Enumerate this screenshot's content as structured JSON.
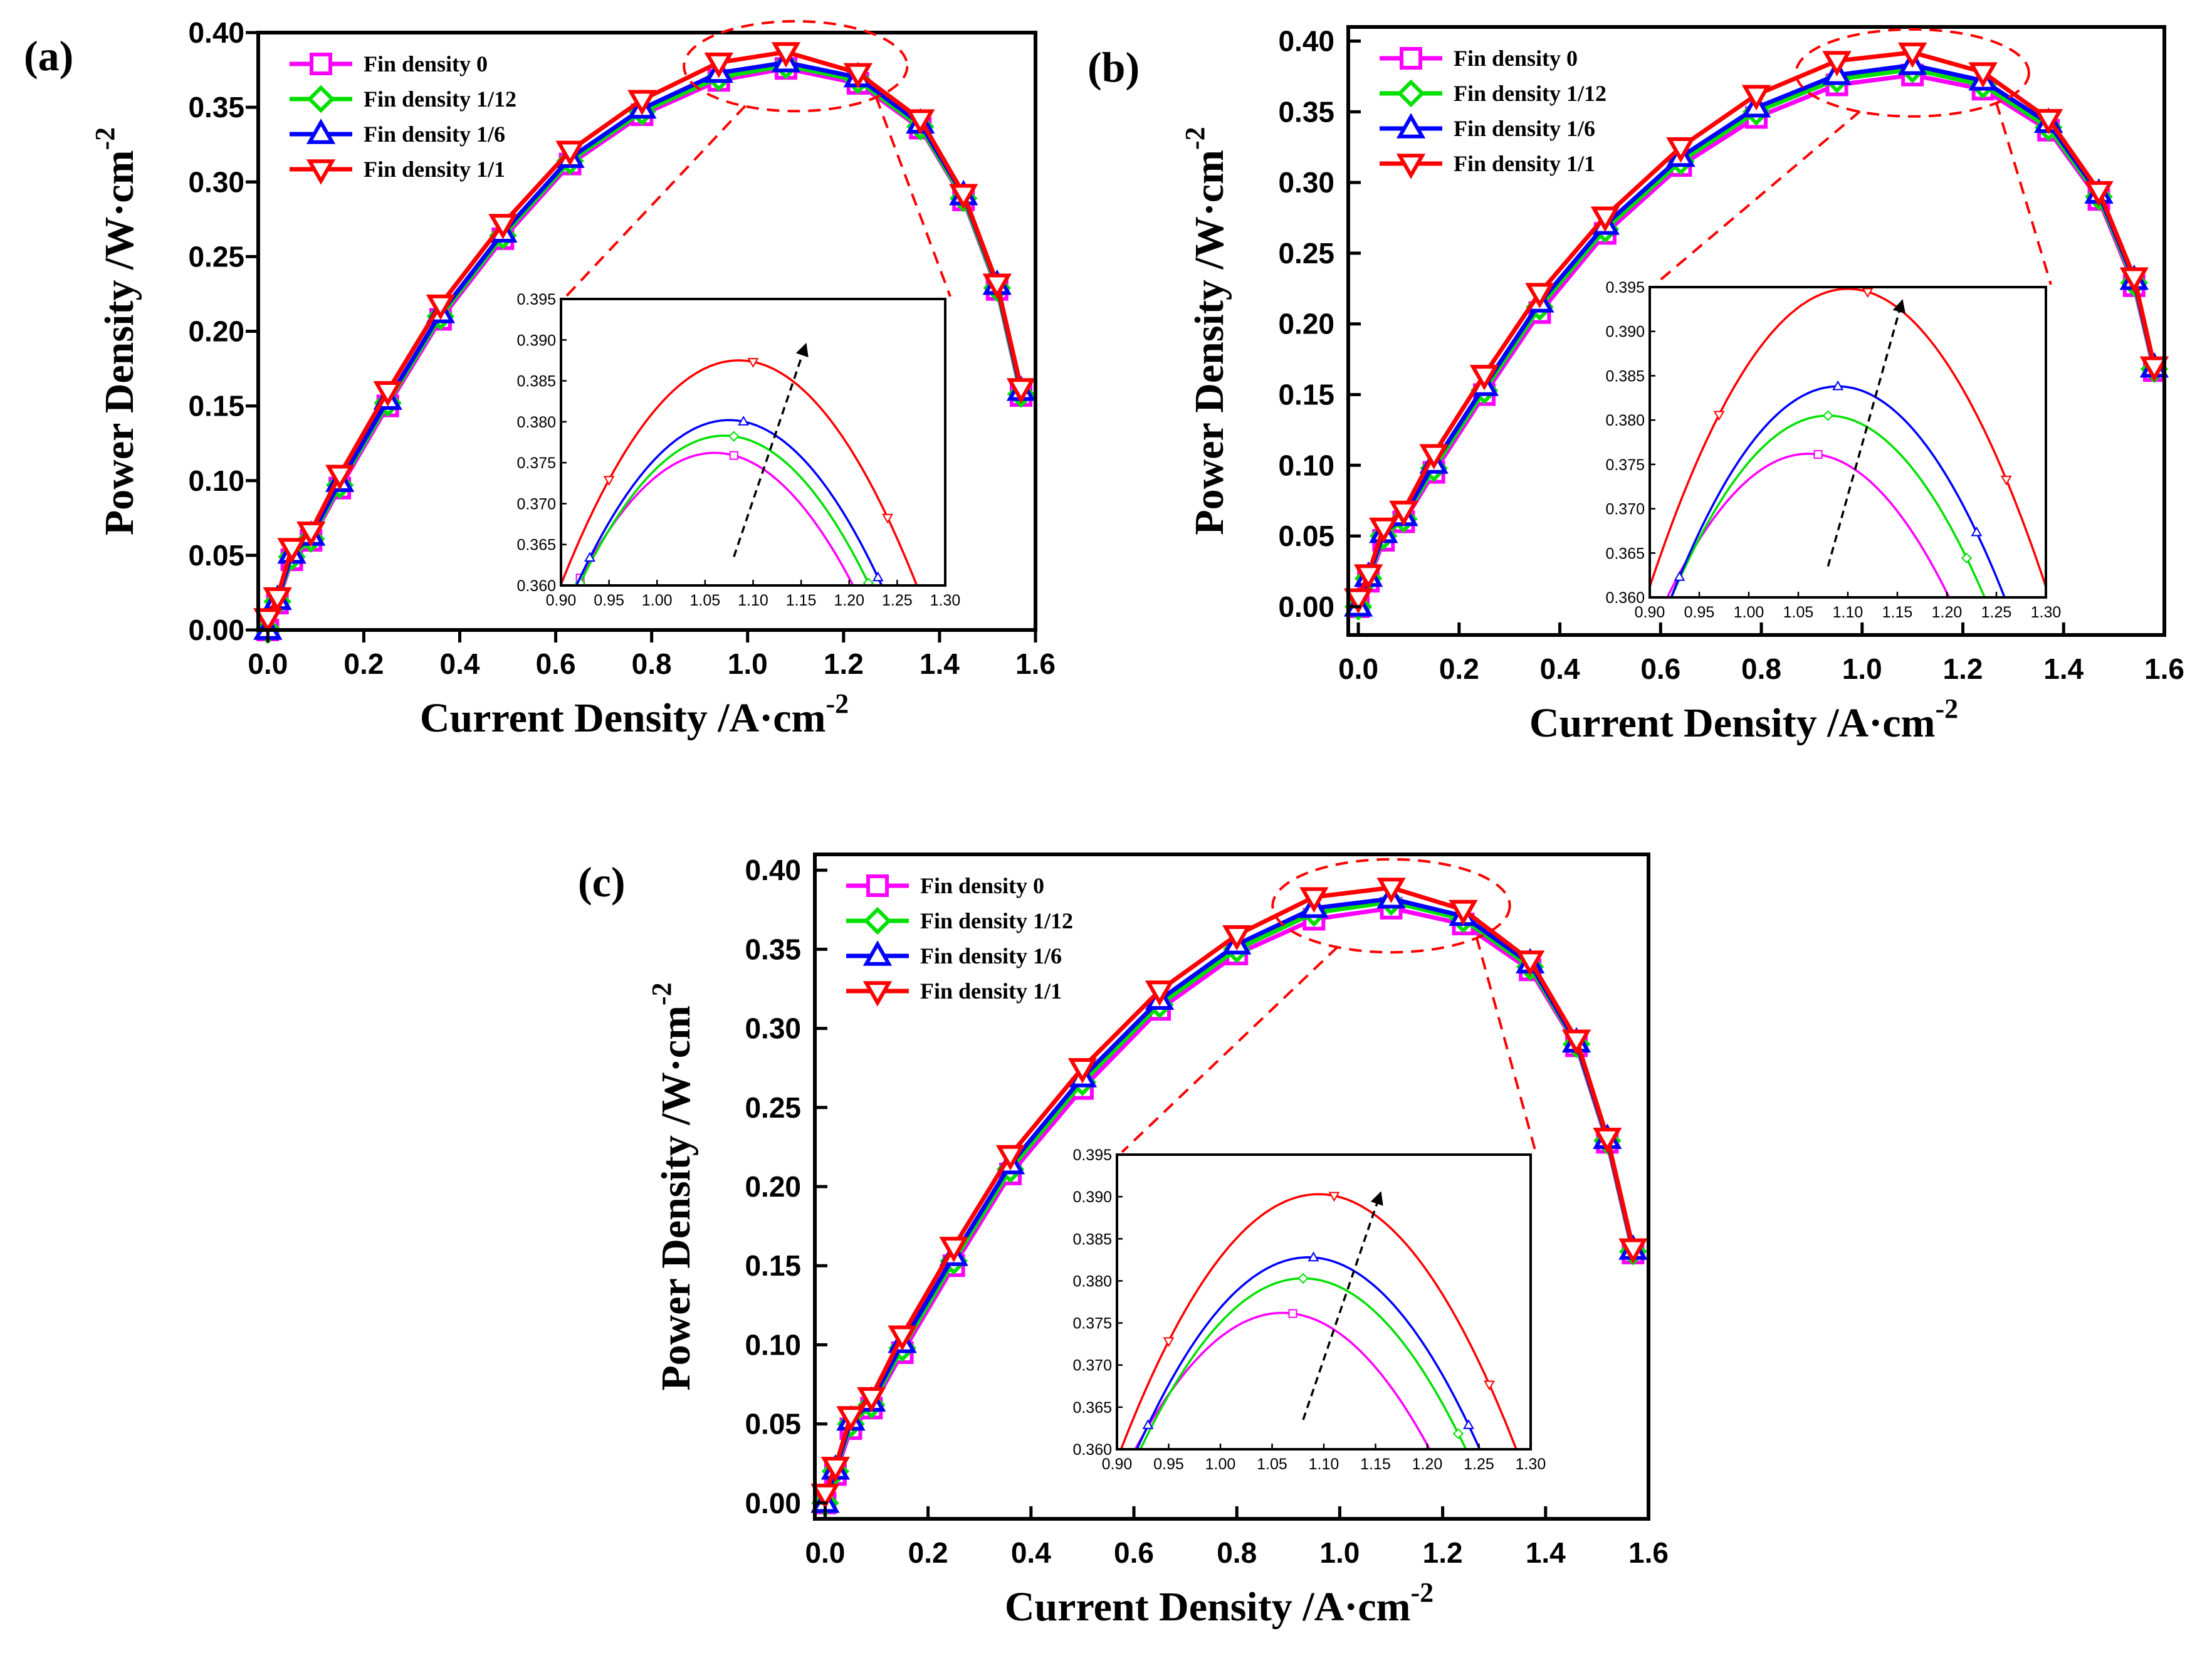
{
  "figure": {
    "series_styles": [
      {
        "name": "Fin density 0",
        "color": "#FF00FF",
        "marker": "square"
      },
      {
        "name": "Fin density 1/12",
        "color": "#00E000",
        "marker": "diamond"
      },
      {
        "name": "Fin density 1/6",
        "color": "#0000FF",
        "marker": "triangle-up"
      },
      {
        "name": "Fin density 1/1",
        "color": "#FF0000",
        "marker": "triangle-down"
      }
    ],
    "zoom_outline_color": "#FF0000",
    "trend_arrow_color": "#000000"
  },
  "chart_data": [
    {
      "panel_label": "(a)",
      "type": "line",
      "xlabel": "Current Density /A·cm",
      "xlabel_exponent": "-2",
      "ylabel": "Power Density /W·cm",
      "ylabel_exponent": "-2",
      "xlim": [
        -0.02,
        1.6
      ],
      "ylim": [
        0.0,
        0.4
      ],
      "xticks": [
        "0.0",
        "0.2",
        "0.4",
        "0.6",
        "0.8",
        "1.0",
        "1.2",
        "1.4",
        "1.6"
      ],
      "yticks": [
        "0.00",
        "0.05",
        "0.10",
        "0.15",
        "0.20",
        "0.25",
        "0.30",
        "0.35",
        "0.40"
      ],
      "legend": "top-left",
      "x": [
        0.0,
        0.02,
        0.05,
        0.09,
        0.15,
        0.25,
        0.36,
        0.49,
        0.63,
        0.78,
        0.94,
        1.08,
        1.23,
        1.36,
        1.45,
        1.52,
        1.57
      ],
      "series": [
        {
          "name": "Fin density 0",
          "values": [
            0.0,
            0.018,
            0.047,
            0.06,
            0.095,
            0.15,
            0.208,
            0.262,
            0.312,
            0.345,
            0.368,
            0.376,
            0.366,
            0.336,
            0.288,
            0.228,
            0.157
          ]
        },
        {
          "name": "Fin density 1/12",
          "values": [
            0.0,
            0.019,
            0.049,
            0.061,
            0.097,
            0.152,
            0.21,
            0.264,
            0.314,
            0.347,
            0.37,
            0.378,
            0.368,
            0.337,
            0.289,
            0.229,
            0.158
          ]
        },
        {
          "name": "Fin density 1/6",
          "values": [
            0.0,
            0.02,
            0.051,
            0.063,
            0.099,
            0.154,
            0.212,
            0.266,
            0.316,
            0.349,
            0.373,
            0.38,
            0.37,
            0.339,
            0.291,
            0.231,
            0.16
          ]
        },
        {
          "name": "Fin density 1/1",
          "values": [
            0.008,
            0.022,
            0.055,
            0.066,
            0.104,
            0.16,
            0.218,
            0.272,
            0.321,
            0.355,
            0.38,
            0.387,
            0.373,
            0.342,
            0.292,
            0.232,
            0.162
          ]
        }
      ],
      "inset": {
        "xlim": [
          0.9,
          1.3
        ],
        "ylim": [
          0.36,
          0.395
        ],
        "xticks": [
          "0.90",
          "0.95",
          "1.00",
          "1.05",
          "1.10",
          "1.15",
          "1.20",
          "1.25",
          "1.30"
        ],
        "yticks": [
          "0.360",
          "0.365",
          "0.370",
          "0.375",
          "0.380",
          "0.385",
          "0.390",
          "0.395"
        ],
        "curves": [
          {
            "name": "Fin density 0",
            "peak_x": 1.06,
            "peak_y": 0.3762,
            "curvature": 0.78,
            "markers_x": [
              0.92,
              1.08,
              1.22
            ]
          },
          {
            "name": "Fin density 1/12",
            "peak_x": 1.07,
            "peak_y": 0.3783,
            "curvature": 0.8,
            "markers_x": [
              0.92,
              1.08,
              1.22
            ]
          },
          {
            "name": "Fin density 1/6",
            "peak_x": 1.075,
            "peak_y": 0.3802,
            "curvature": 0.8,
            "markers_x": [
              0.93,
              1.09,
              1.23
            ]
          },
          {
            "name": "Fin density 1/1",
            "peak_x": 1.085,
            "peak_y": 0.3875,
            "curvature": 0.8,
            "markers_x": [
              0.95,
              1.1,
              1.24
            ]
          }
        ],
        "arrow": {
          "from": [
            1.08,
            0.3635
          ],
          "to": [
            1.155,
            0.3895
          ]
        }
      }
    },
    {
      "panel_label": "(b)",
      "type": "line",
      "xlabel": "Current Density /A·cm",
      "xlabel_exponent": "-2",
      "ylabel": "Power Density /W·cm",
      "ylabel_exponent": "-2",
      "xlim": [
        -0.02,
        1.6
      ],
      "ylim": [
        -0.02,
        0.41
      ],
      "xticks": [
        "0.0",
        "0.2",
        "0.4",
        "0.6",
        "0.8",
        "1.0",
        "1.2",
        "1.4",
        "1.6"
      ],
      "yticks": [
        "0.00",
        "0.05",
        "0.10",
        "0.15",
        "0.20",
        "0.25",
        "0.30",
        "0.35",
        "0.40"
      ],
      "legend": "top-left",
      "x": [
        0.0,
        0.02,
        0.05,
        0.09,
        0.15,
        0.25,
        0.36,
        0.49,
        0.64,
        0.79,
        0.95,
        1.1,
        1.24,
        1.37,
        1.47,
        1.54,
        1.58
      ],
      "series": [
        {
          "name": "Fin density 0",
          "values": [
            0.0,
            0.018,
            0.047,
            0.06,
            0.095,
            0.15,
            0.208,
            0.264,
            0.312,
            0.346,
            0.369,
            0.376,
            0.366,
            0.337,
            0.288,
            0.227,
            0.167
          ]
        },
        {
          "name": "Fin density 1/12",
          "values": [
            0.0,
            0.02,
            0.05,
            0.062,
            0.098,
            0.153,
            0.212,
            0.267,
            0.315,
            0.35,
            0.373,
            0.38,
            0.369,
            0.339,
            0.29,
            0.229,
            0.168
          ]
        },
        {
          "name": "Fin density 1/6",
          "values": [
            0.0,
            0.021,
            0.052,
            0.064,
            0.101,
            0.156,
            0.215,
            0.27,
            0.318,
            0.353,
            0.376,
            0.383,
            0.372,
            0.342,
            0.292,
            0.231,
            0.169
          ]
        },
        {
          "name": "Fin density 1/1",
          "values": [
            0.006,
            0.023,
            0.056,
            0.068,
            0.108,
            0.164,
            0.222,
            0.276,
            0.325,
            0.362,
            0.386,
            0.392,
            0.378,
            0.345,
            0.294,
            0.233,
            0.17
          ]
        }
      ],
      "inset": {
        "xlim": [
          0.9,
          1.3
        ],
        "ylim": [
          0.36,
          0.395
        ],
        "xticks": [
          "0.90",
          "0.95",
          "1.00",
          "1.05",
          "1.10",
          "1.15",
          "1.20",
          "1.25",
          "1.30"
        ],
        "yticks": [
          "0.360",
          "0.365",
          "0.370",
          "0.375",
          "0.380",
          "0.385",
          "0.390",
          "0.395"
        ],
        "curves": [
          {
            "name": "Fin density 0",
            "peak_x": 1.06,
            "peak_y": 0.3762,
            "curvature": 0.8,
            "markers_x": [
              0.91,
              1.07,
              1.21
            ]
          },
          {
            "name": "Fin density 1/12",
            "peak_x": 1.08,
            "peak_y": 0.3805,
            "curvature": 0.82,
            "markers_x": [
              0.92,
              1.08,
              1.22
            ]
          },
          {
            "name": "Fin density 1/6",
            "peak_x": 1.09,
            "peak_y": 0.3838,
            "curvature": 0.84,
            "markers_x": [
              0.93,
              1.09,
              1.23
            ]
          },
          {
            "name": "Fin density 1/1",
            "peak_x": 1.1,
            "peak_y": 0.3948,
            "curvature": 0.84,
            "markers_x": [
              0.97,
              1.12,
              1.26
            ]
          }
        ],
        "arrow": {
          "from": [
            1.08,
            0.3635
          ],
          "to": [
            1.155,
            0.3935
          ]
        }
      }
    },
    {
      "panel_label": "(c)",
      "type": "line",
      "xlabel": "Current Density /A·cm",
      "xlabel_exponent": "-2",
      "ylabel": "Power Density /W·cm",
      "ylabel_exponent": "-2",
      "xlim": [
        -0.02,
        1.6
      ],
      "ylim": [
        -0.01,
        0.41
      ],
      "xticks": [
        "0.0",
        "0.2",
        "0.4",
        "0.6",
        "0.8",
        "1.0",
        "1.2",
        "1.4",
        "1.6"
      ],
      "yticks": [
        "0.00",
        "0.05",
        "0.10",
        "0.15",
        "0.20",
        "0.25",
        "0.30",
        "0.35",
        "0.40"
      ],
      "legend": "top-left",
      "x": [
        0.0,
        0.02,
        0.05,
        0.09,
        0.15,
        0.25,
        0.36,
        0.5,
        0.65,
        0.8,
        0.95,
        1.1,
        1.24,
        1.37,
        1.46,
        1.52,
        1.57
      ],
      "series": [
        {
          "name": "Fin density 0",
          "values": [
            0.0,
            0.018,
            0.047,
            0.06,
            0.095,
            0.15,
            0.208,
            0.262,
            0.312,
            0.347,
            0.369,
            0.376,
            0.366,
            0.337,
            0.289,
            0.228,
            0.158
          ]
        },
        {
          "name": "Fin density 1/12",
          "values": [
            0.0,
            0.02,
            0.05,
            0.062,
            0.098,
            0.153,
            0.211,
            0.266,
            0.315,
            0.35,
            0.373,
            0.38,
            0.369,
            0.339,
            0.29,
            0.229,
            0.159
          ]
        },
        {
          "name": "Fin density 1/6",
          "values": [
            0.0,
            0.021,
            0.052,
            0.064,
            0.101,
            0.156,
            0.214,
            0.269,
            0.318,
            0.353,
            0.376,
            0.382,
            0.371,
            0.341,
            0.291,
            0.23,
            0.16
          ]
        },
        {
          "name": "Fin density 1/1",
          "values": [
            0.006,
            0.023,
            0.055,
            0.067,
            0.106,
            0.162,
            0.22,
            0.275,
            0.324,
            0.359,
            0.383,
            0.389,
            0.375,
            0.343,
            0.293,
            0.231,
            0.161
          ]
        }
      ],
      "inset": {
        "xlim": [
          0.9,
          1.3
        ],
        "ylim": [
          0.36,
          0.395
        ],
        "xticks": [
          "0.90",
          "0.95",
          "1.00",
          "1.05",
          "1.10",
          "1.15",
          "1.20",
          "1.25",
          "1.30"
        ],
        "yticks": [
          "0.360",
          "0.365",
          "0.370",
          "0.375",
          "0.380",
          "0.385",
          "0.390",
          "0.395"
        ],
        "curves": [
          {
            "name": "Fin density 0",
            "peak_x": 1.06,
            "peak_y": 0.3762,
            "curvature": 0.8,
            "markers_x": [
              0.91,
              1.07,
              1.22
            ]
          },
          {
            "name": "Fin density 1/12",
            "peak_x": 1.08,
            "peak_y": 0.3803,
            "curvature": 0.82,
            "markers_x": [
              0.92,
              1.08,
              1.23
            ]
          },
          {
            "name": "Fin density 1/6",
            "peak_x": 1.085,
            "peak_y": 0.3828,
            "curvature": 0.83,
            "markers_x": [
              0.93,
              1.09,
              1.24
            ]
          },
          {
            "name": "Fin density 1/1",
            "peak_x": 1.095,
            "peak_y": 0.3903,
            "curvature": 0.83,
            "markers_x": [
              0.95,
              1.11,
              1.26
            ]
          }
        ],
        "arrow": {
          "from": [
            1.08,
            0.3635
          ],
          "to": [
            1.155,
            0.3905
          ]
        }
      }
    }
  ]
}
